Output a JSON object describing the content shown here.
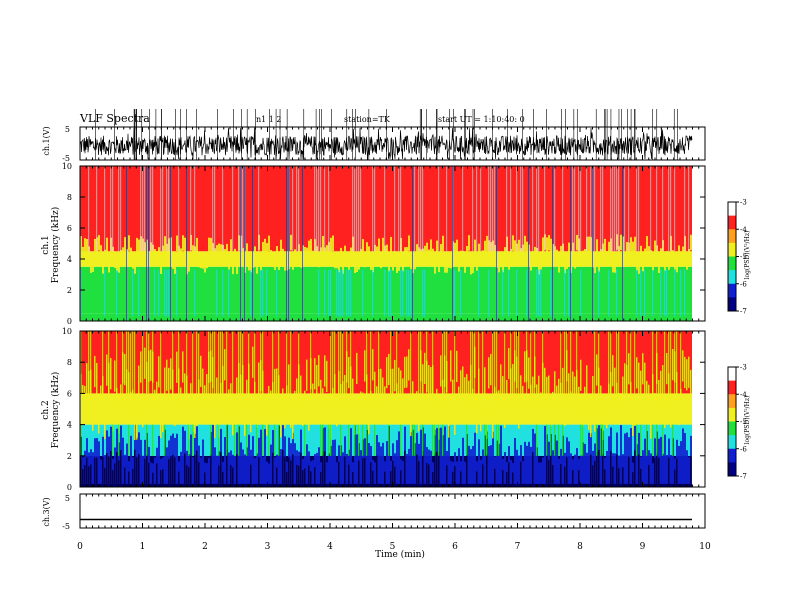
{
  "header": {
    "title": "VLF Spectra",
    "date_text": "n1   1   2",
    "station_text": "station=TK",
    "start_text": "start UT =  1:10:40: 0"
  },
  "colors": {
    "red": "#ff2020",
    "yellow": "#f0f020",
    "green": "#20e040",
    "cyan": "#20e0e0",
    "blue": "#1020d0",
    "navy": "#000060",
    "black": "#000000"
  },
  "chart_data": [
    {
      "type": "line",
      "name": "ch1-waveform",
      "ylabel": "ch.1(V)",
      "yticks": [
        "5",
        "-5"
      ],
      "ylim": [
        -5,
        5
      ],
      "xlim": [
        0,
        10
      ],
      "description_values": {
        "baseline_v": 0,
        "typical_amplitude_v": 3
      }
    },
    {
      "type": "heatmap",
      "name": "ch1-spectrogram",
      "ylabel": "ch.1\nFrequency (kHz)",
      "ylabel_lines": [
        "ch.1",
        "Frequency (kHz)"
      ],
      "yticks": [
        "0",
        "2",
        "4",
        "6",
        "8",
        "10"
      ],
      "ylim": [
        0,
        10
      ],
      "xlim": [
        0,
        9.85
      ],
      "colorbar": {
        "label": "log(PSD)(V²/Hz)",
        "ticks": [
          "-3",
          "-4",
          "-5",
          "-6",
          "-7"
        ],
        "range": [
          -7,
          -3
        ]
      },
      "bands_khz": [
        {
          "from": 0,
          "to": 0.5,
          "level": "green"
        },
        {
          "from": 0.5,
          "to": 3.5,
          "level": "green"
        },
        {
          "from": 3.5,
          "to": 4.5,
          "level": "yellow"
        },
        {
          "from": 4.5,
          "to": 10,
          "level": "red"
        }
      ]
    },
    {
      "type": "heatmap",
      "name": "ch2-spectrogram",
      "ylabel": "ch.2\nFrequency (kHz)",
      "ylabel_lines": [
        "ch.2",
        "Frequency (kHz)"
      ],
      "yticks": [
        "0",
        "2",
        "4",
        "6",
        "8",
        "10"
      ],
      "ylim": [
        0,
        10
      ],
      "xlim": [
        0,
        9.85
      ],
      "colorbar": {
        "label": "log(PSD)(V²/Hz)",
        "ticks": [
          "-3",
          "-4",
          "-5",
          "-6",
          "-7"
        ],
        "range": [
          -7,
          -3
        ]
      },
      "bands_khz": [
        {
          "from": 0,
          "to": 2,
          "level": "navy"
        },
        {
          "from": 2,
          "to": 4,
          "level": "cyan"
        },
        {
          "from": 4,
          "to": 6,
          "level": "yellow"
        },
        {
          "from": 6,
          "to": 10,
          "level": "red"
        }
      ]
    },
    {
      "type": "line",
      "name": "ch3-waveform",
      "ylabel": "ch.3(V)",
      "yticks": [
        "5",
        "-5"
      ],
      "ylim": [
        -5,
        5
      ],
      "xlim": [
        0,
        10
      ],
      "description_values": {
        "level_v": -2.5
      }
    }
  ],
  "xaxis": {
    "label": "Time (min)",
    "ticks": [
      "0",
      "1",
      "2",
      "3",
      "4",
      "5",
      "6",
      "7",
      "8",
      "9",
      "10"
    ],
    "range": [
      0,
      10
    ]
  }
}
